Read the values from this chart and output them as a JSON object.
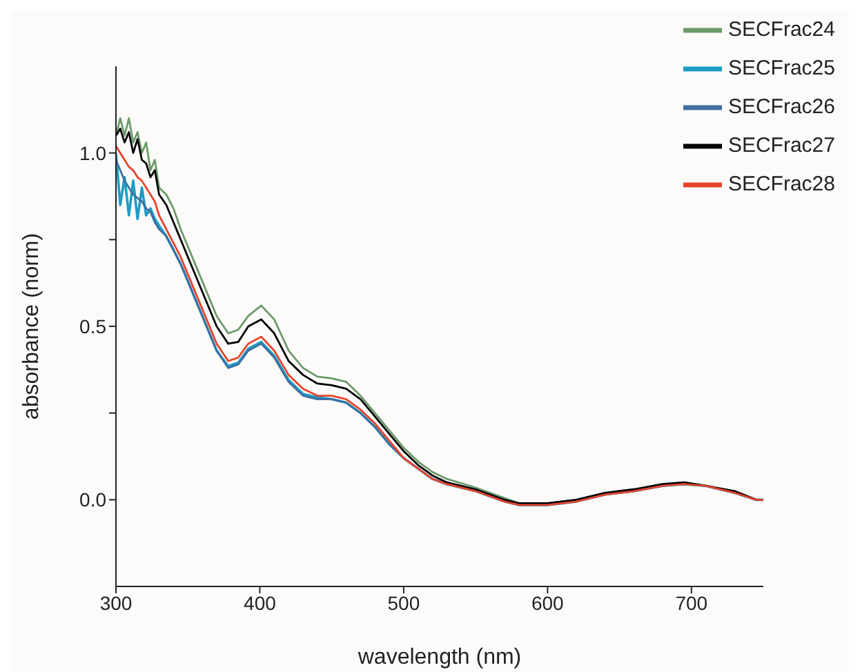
{
  "chart_data": {
    "type": "line",
    "xlabel": "wavelength (nm)",
    "ylabel": "absorbance (norm)",
    "x": [
      300,
      303,
      306,
      309,
      312,
      315,
      318,
      321,
      324,
      327,
      330,
      335,
      340,
      345,
      350,
      360,
      370,
      378,
      385,
      392,
      401,
      410,
      420,
      430,
      440,
      450,
      460,
      470,
      480,
      490,
      500,
      510,
      520,
      530,
      550,
      570,
      580,
      600,
      620,
      640,
      660,
      680,
      695,
      710,
      730,
      745,
      750
    ],
    "series": [
      {
        "name": "SECFrac24",
        "color": "#6b9a6b",
        "values": [
          1.05,
          1.1,
          1.05,
          1.1,
          1.03,
          1.06,
          1.0,
          1.03,
          0.95,
          0.98,
          0.9,
          0.88,
          0.84,
          0.78,
          0.73,
          0.63,
          0.53,
          0.48,
          0.49,
          0.53,
          0.56,
          0.52,
          0.43,
          0.38,
          0.355,
          0.35,
          0.34,
          0.3,
          0.25,
          0.2,
          0.15,
          0.11,
          0.08,
          0.06,
          0.035,
          0.005,
          -0.01,
          -0.01,
          0.0,
          0.02,
          0.03,
          0.045,
          0.05,
          0.04,
          0.025,
          0.0,
          0.0
        ]
      },
      {
        "name": "SECFrac25",
        "color": "#1f9bc4",
        "values": [
          1.0,
          0.85,
          0.93,
          0.82,
          0.92,
          0.81,
          0.9,
          0.82,
          0.84,
          0.81,
          0.79,
          0.76,
          0.72,
          0.68,
          0.63,
          0.53,
          0.43,
          0.385,
          0.395,
          0.435,
          0.455,
          0.415,
          0.345,
          0.305,
          0.295,
          0.29,
          0.28,
          0.25,
          0.21,
          0.16,
          0.12,
          0.09,
          0.06,
          0.045,
          0.025,
          -0.005,
          -0.015,
          -0.015,
          -0.005,
          0.015,
          0.025,
          0.04,
          0.045,
          0.04,
          0.02,
          0.0,
          0.0
        ]
      },
      {
        "name": "SECFrac26",
        "color": "#3f6fa0",
        "values": [
          0.98,
          0.95,
          0.92,
          0.9,
          0.88,
          0.87,
          0.86,
          0.84,
          0.83,
          0.8,
          0.78,
          0.76,
          0.72,
          0.68,
          0.63,
          0.53,
          0.43,
          0.38,
          0.39,
          0.43,
          0.45,
          0.41,
          0.34,
          0.3,
          0.29,
          0.29,
          0.28,
          0.25,
          0.21,
          0.16,
          0.12,
          0.09,
          0.06,
          0.045,
          0.025,
          -0.005,
          -0.015,
          -0.015,
          -0.005,
          0.015,
          0.025,
          0.04,
          0.045,
          0.04,
          0.02,
          0.0,
          0.0
        ]
      },
      {
        "name": "SECFrac27",
        "color": "#000000",
        "values": [
          1.05,
          1.07,
          1.03,
          1.06,
          1.0,
          1.04,
          0.98,
          0.97,
          0.93,
          0.95,
          0.88,
          0.85,
          0.8,
          0.75,
          0.7,
          0.6,
          0.5,
          0.45,
          0.455,
          0.5,
          0.52,
          0.48,
          0.4,
          0.36,
          0.335,
          0.33,
          0.32,
          0.29,
          0.24,
          0.19,
          0.14,
          0.1,
          0.07,
          0.05,
          0.03,
          0.0,
          -0.01,
          -0.01,
          0.0,
          0.02,
          0.03,
          0.045,
          0.05,
          0.04,
          0.025,
          0.0,
          0.0
        ]
      },
      {
        "name": "SECFrac28",
        "color": "#e8432a",
        "values": [
          1.02,
          1.0,
          0.98,
          0.96,
          0.95,
          0.93,
          0.92,
          0.9,
          0.88,
          0.86,
          0.82,
          0.78,
          0.74,
          0.7,
          0.65,
          0.55,
          0.45,
          0.4,
          0.41,
          0.45,
          0.47,
          0.43,
          0.36,
          0.32,
          0.3,
          0.3,
          0.29,
          0.26,
          0.22,
          0.17,
          0.12,
          0.09,
          0.06,
          0.045,
          0.025,
          -0.005,
          -0.015,
          -0.015,
          -0.005,
          0.015,
          0.025,
          0.04,
          0.045,
          0.04,
          0.02,
          0.0,
          0.0
        ]
      }
    ],
    "xlim": [
      300,
      750
    ],
    "xticks": [
      300,
      400,
      500,
      600,
      700
    ],
    "ylim": [
      -0.25,
      1.25
    ],
    "yticks": [
      {
        "value": 0,
        "label": "0.0"
      },
      {
        "value": 0.25,
        "label": null
      },
      {
        "value": 0.5,
        "label": "0.5"
      },
      {
        "value": 0.75,
        "label": null
      },
      {
        "value": 1,
        "label": "1.0"
      }
    ],
    "grid": false,
    "legend": "top right",
    "marker": "none",
    "line_style": "solid"
  }
}
